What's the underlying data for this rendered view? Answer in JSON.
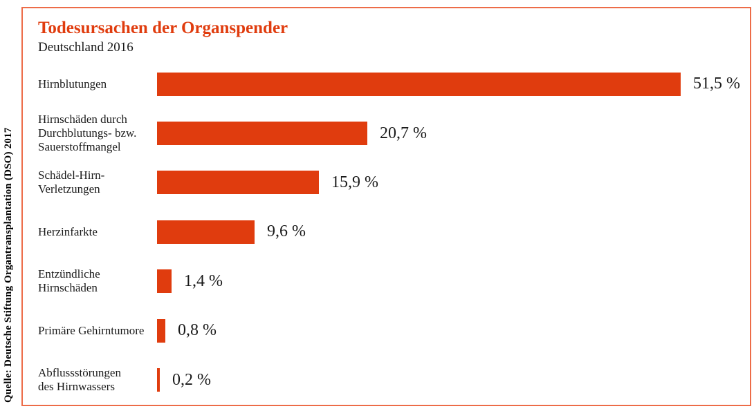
{
  "colors": {
    "accent": "#e03c0e",
    "frame_border": "#ed6c48",
    "text": "#1a1a1a"
  },
  "chart_data": {
    "type": "bar",
    "orientation": "horizontal",
    "title": "Todesursachen der Organspender",
    "subtitle": "Deutschland 2016",
    "source": "Quelle: Deutsche Stiftung Organtransplantation (DSO) 2017",
    "unit": "%",
    "xlim": [
      0,
      51.5
    ],
    "grid": false,
    "legend": false,
    "categories": [
      "Hirnblutungen",
      "Hirnschäden durch Durchblutungs- bzw. Sauerstoffmangel",
      "Schädel-Hirn-Verletzungen",
      "Herzinfarkte",
      "Entzündliche Hirnschäden",
      "Primäre Gehirntumore",
      "Abflussstörungen des Hirnwassers"
    ],
    "label_lines": [
      [
        "Hirnblutungen"
      ],
      [
        "Hirnschäden durch",
        "Durchblutungs- bzw.",
        "Sauerstoffmangel"
      ],
      [
        "Schädel-Hirn-",
        "Verletzungen"
      ],
      [
        "Herzinfarkte"
      ],
      [
        "Entzündliche",
        "Hirnschäden"
      ],
      [
        "Primäre Gehirntumore"
      ],
      [
        "Abflussstörungen",
        "des Hirnwassers"
      ]
    ],
    "values": [
      51.5,
      20.7,
      15.9,
      9.6,
      1.4,
      0.8,
      0.2
    ],
    "value_labels": [
      "51,5 %",
      "20,7 %",
      "15,9 %",
      "9,6 %",
      "1,4 %",
      "0,8 %",
      "0,2 %"
    ]
  }
}
